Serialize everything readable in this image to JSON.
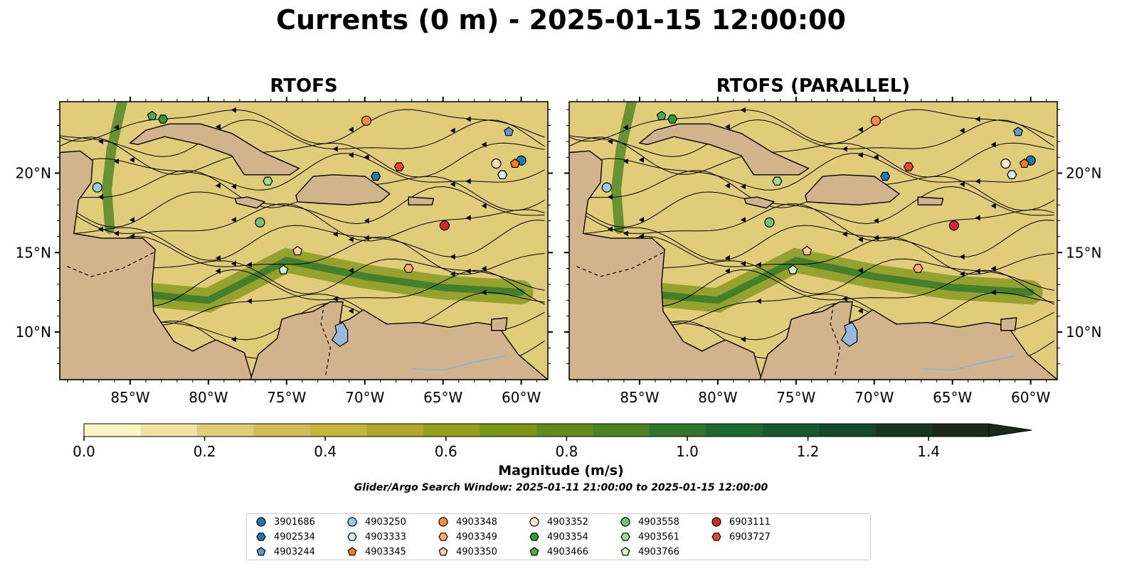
{
  "figure": {
    "title": "Currents (0 m) - 2025-01-15 12:00:00",
    "subtitle": "Glider/Argo Search Window: 2025-01-11 21:00:00 to 2025-01-15 12:00:00"
  },
  "panels": [
    {
      "title": "RTOFS"
    },
    {
      "title": "RTOFS (PARALLEL)"
    }
  ],
  "axes": {
    "lon_ticks": [
      "85°W",
      "80°W",
      "75°W",
      "70°W",
      "65°W",
      "60°W"
    ],
    "lat_ticks": [
      "20°N",
      "15°N",
      "10°N"
    ],
    "lon_range": [
      -89.5,
      -58.3
    ],
    "lat_range": [
      7.0,
      24.5
    ]
  },
  "colorbar": {
    "label": "Magnitude (m/s)",
    "ticks": [
      "0.0",
      "0.2",
      "0.4",
      "0.6",
      "0.8",
      "1.0",
      "1.2",
      "1.4"
    ],
    "range": [
      0.0,
      1.5
    ],
    "extend": "max",
    "colors": [
      "#fcf5c5",
      "#f0e2a0",
      "#e1cc7a",
      "#d3bb58",
      "#c4b43c",
      "#aea729",
      "#93a01b",
      "#7b9516",
      "#628c17",
      "#4a8422",
      "#2f762c",
      "#1d6a31",
      "#165a2d",
      "#154828",
      "#193624",
      "#1c281c"
    ]
  },
  "colors": {
    "land": "#d2b48c",
    "lake": "#98b8e0",
    "river": "#98b0d0"
  },
  "legend": {
    "items": [
      {
        "id": "3901686",
        "marker": "circle",
        "color": "#1f77b4"
      },
      {
        "id": "4902534",
        "marker": "hexagon",
        "color": "#1f77b4"
      },
      {
        "id": "4903244",
        "marker": "pentagon",
        "color": "#5b9bd5"
      },
      {
        "id": "4903250",
        "marker": "circle",
        "color": "#9ecae1"
      },
      {
        "id": "4903333",
        "marker": "hexagon",
        "color": "#d6ecfa"
      },
      {
        "id": "4903345",
        "marker": "pentagon",
        "color": "#ff7f0e"
      },
      {
        "id": "4903348",
        "marker": "circle",
        "color": "#fd8d3c"
      },
      {
        "id": "4903349",
        "marker": "hexagon",
        "color": "#fdae6b"
      },
      {
        "id": "4903350",
        "marker": "pentagon",
        "color": "#fdd0a2"
      },
      {
        "id": "4903352",
        "marker": "circle",
        "color": "#fee6ce"
      },
      {
        "id": "4903354",
        "marker": "hexagon",
        "color": "#2ca02c"
      },
      {
        "id": "4903466",
        "marker": "pentagon",
        "color": "#4daf4a"
      },
      {
        "id": "4903558",
        "marker": "circle",
        "color": "#74c476"
      },
      {
        "id": "4903561",
        "marker": "hexagon",
        "color": "#a1d99b"
      },
      {
        "id": "4903766",
        "marker": "pentagon",
        "color": "#d8f5d0"
      },
      {
        "id": "6903111",
        "marker": "circle",
        "color": "#d62728"
      },
      {
        "id": "6903727",
        "marker": "hexagon",
        "color": "#e34a33"
      }
    ]
  },
  "floats": [
    {
      "id": "3901686",
      "lon": -60.0,
      "lat": 20.8
    },
    {
      "id": "4902534",
      "lon": -69.3,
      "lat": 19.8
    },
    {
      "id": "4903244",
      "lon": -60.8,
      "lat": 22.6
    },
    {
      "id": "4903250",
      "lon": -87.1,
      "lat": 19.1
    },
    {
      "id": "4903333",
      "lon": -61.2,
      "lat": 19.9
    },
    {
      "id": "4903345",
      "lon": -60.4,
      "lat": 20.6
    },
    {
      "id": "4903348",
      "lon": -69.9,
      "lat": 23.3
    },
    {
      "id": "4903349",
      "lon": -67.2,
      "lat": 14.0
    },
    {
      "id": "4903350",
      "lon": -74.3,
      "lat": 15.1
    },
    {
      "id": "4903352",
      "lon": -61.6,
      "lat": 20.6
    },
    {
      "id": "4903354",
      "lon": -82.9,
      "lat": 23.4
    },
    {
      "id": "4903466",
      "lon": -83.6,
      "lat": 23.6
    },
    {
      "id": "4903558",
      "lon": -76.7,
      "lat": 16.9
    },
    {
      "id": "4903561",
      "lon": -76.2,
      "lat": 19.5
    },
    {
      "id": "4903766",
      "lon": -75.2,
      "lat": 13.9
    },
    {
      "id": "6903111",
      "lon": -64.9,
      "lat": 16.7
    },
    {
      "id": "6903727",
      "lon": -67.8,
      "lat": 20.4
    }
  ]
}
